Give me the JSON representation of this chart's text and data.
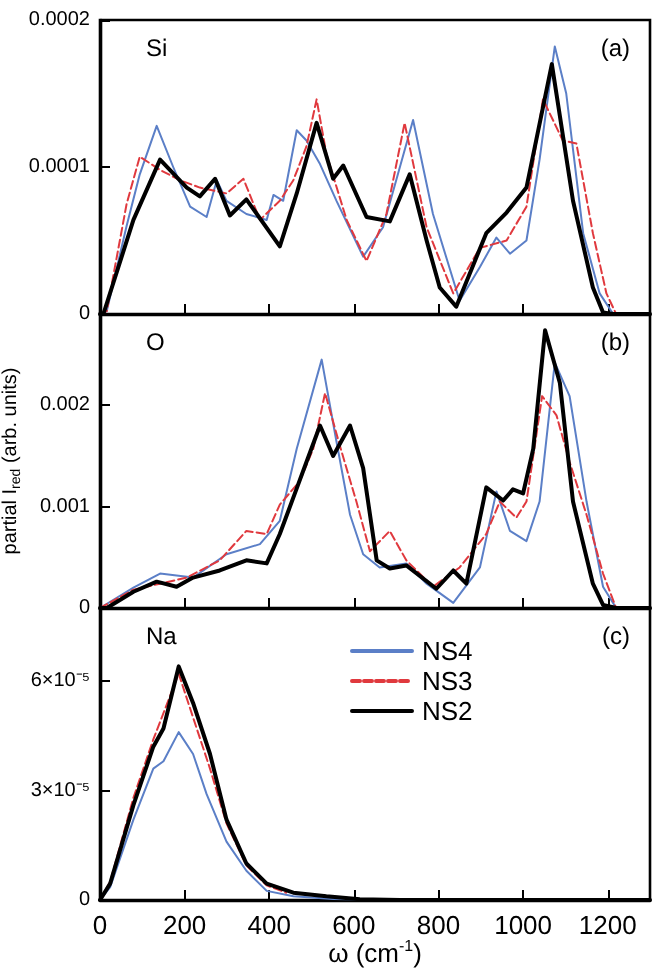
{
  "chart_data": [
    {
      "type": "line",
      "annotations": [
        "Si",
        "(a)"
      ],
      "xlim": [
        0,
        1300
      ],
      "xticks": [
        0,
        200,
        400,
        600,
        800,
        1000,
        1200
      ],
      "ylim": [
        0,
        0.0002
      ],
      "yticks": [
        0,
        0.0001,
        0.0002
      ],
      "tick_labels": "y",
      "marker": "none",
      "series": [
        {
          "color": "#5b7fc7",
          "line_style": "solid",
          "x": [
            0,
            16,
            63,
            94,
            134,
            173,
            213,
            252,
            276,
            299,
            346,
            394,
            410,
            433,
            465,
            488,
            520,
            559,
            622,
            669,
            740,
            787,
            850,
            898,
            937,
            969,
            1008,
            1039,
            1075,
            1102,
            1142,
            1181,
            1213,
            1300
          ],
          "values": [
            0,
            2e-06,
            6e-05,
            9.5e-05,
            0.000128,
            0.0001,
            7.3e-05,
            6.6e-05,
            9.1e-05,
            7.7e-05,
            6.8e-05,
            6.4e-05,
            8.1e-05,
            7.7e-05,
            0.000125,
            0.000118,
            0.000102,
            7.7e-05,
            3.9e-05,
            5.9e-05,
            0.000132,
            6.8e-05,
            9e-06,
            3.2e-05,
            5.2e-05,
            4.1e-05,
            5e-05,
            0.000105,
            0.000182,
            0.00015,
            5.5e-05,
            1.4e-05,
            0,
            0
          ]
        },
        {
          "color": "#e0393e",
          "line_style": "dashed",
          "x": [
            0,
            16,
            63,
            94,
            142,
            189,
            236,
            299,
            339,
            378,
            425,
            457,
            488,
            512,
            535,
            583,
            630,
            677,
            720,
            772,
            835,
            898,
            961,
            1008,
            1047,
            1094,
            1126,
            1165,
            1197,
            1220,
            1300
          ],
          "values": [
            0,
            2e-06,
            7.5e-05,
            0.000107,
            9.8e-05,
            9.1e-05,
            8.6e-05,
            8.2e-05,
            9.2e-05,
            6.4e-05,
            7.7e-05,
            9.1e-05,
            0.000114,
            0.000146,
            0.000109,
            6.4e-05,
            3.6e-05,
            6.8e-05,
            0.00013,
            5.9e-05,
            1.4e-05,
            4.5e-05,
            5e-05,
            7.3e-05,
            0.000146,
            0.000118,
            0.000116,
            5.5e-05,
            1.4e-05,
            0,
            0
          ]
        },
        {
          "color": "#000000",
          "line_style": "solid",
          "x": [
            0,
            8,
            79,
            142,
            205,
            236,
            272,
            307,
            346,
            425,
            465,
            512,
            551,
            575,
            630,
            685,
            732,
            772,
            803,
            842,
            913,
            961,
            1008,
            1068,
            1118,
            1165,
            1189,
            1213,
            1300
          ],
          "values": [
            0,
            0,
            6.4e-05,
            0.000105,
            8.6e-05,
            8e-05,
            9.2e-05,
            6.7e-05,
            7.8e-05,
            4.6e-05,
            8.2e-05,
            0.00013,
            9.2e-05,
            0.000101,
            6.6e-05,
            6.3e-05,
            9.5e-05,
            5e-05,
            1.8e-05,
            5e-06,
            5.5e-05,
            6.9e-05,
            8.6e-05,
            0.00017,
            7.7e-05,
            1.8e-05,
            1e-06,
            0,
            0
          ]
        }
      ]
    },
    {
      "type": "line",
      "ylabel": "partial I$_{red}$ (arb. units)",
      "annotations": [
        "O",
        "(b)"
      ],
      "xlim": [
        0,
        1300
      ],
      "xticks": [
        0,
        200,
        400,
        600,
        800,
        1000,
        1200
      ],
      "ylim": [
        0,
        0.0029
      ],
      "yticks": [
        0,
        0.001,
        0.002
      ],
      "tick_labels": "y",
      "marker": "none",
      "series": [
        {
          "color": "#5b7fc7",
          "line_style": "solid",
          "x": [
            0,
            79,
            142,
            220,
            299,
            378,
            425,
            465,
            524,
            559,
            591,
            622,
            661,
            724,
            772,
            835,
            898,
            937,
            969,
            1008,
            1039,
            1075,
            1110,
            1150,
            1189,
            1220,
            1300
          ],
          "values": [
            0,
            0.0002,
            0.00034,
            0.0003,
            0.00053,
            0.00063,
            0.00086,
            0.00157,
            0.00245,
            0.00164,
            0.00092,
            0.00053,
            0.0004,
            0.00044,
            0.00024,
            5e-05,
            0.0004,
            0.00115,
            0.00076,
            0.00066,
            0.00105,
            0.00242,
            0.00209,
            0.00105,
            0.00021,
            0,
            0
          ]
        },
        {
          "color": "#e0393e",
          "line_style": "dashed",
          "x": [
            0,
            79,
            142,
            205,
            283,
            346,
            394,
            425,
            472,
            504,
            532,
            567,
            606,
            638,
            685,
            724,
            787,
            850,
            913,
            945,
            984,
            1008,
            1045,
            1079,
            1110,
            1150,
            1189,
            1220,
            1300
          ],
          "values": [
            0,
            0.00018,
            0.00024,
            0.0003,
            0.00047,
            0.00076,
            0.00073,
            0.00102,
            0.00125,
            0.00157,
            0.00212,
            0.0016,
            0.00105,
            0.00056,
            0.00076,
            0.00047,
            0.00021,
            0.0004,
            0.00073,
            0.00105,
            0.00089,
            0.00105,
            0.00209,
            0.0019,
            0.00144,
            0.00092,
            0.00034,
            0,
            0
          ]
        },
        {
          "color": "#000000",
          "line_style": "solid",
          "x": [
            0,
            16,
            79,
            134,
            181,
            220,
            283,
            346,
            394,
            425,
            465,
            488,
            520,
            551,
            591,
            622,
            654,
            685,
            724,
            795,
            835,
            866,
            913,
            953,
            976,
            1000,
            1024,
            1052,
            1087,
            1118,
            1165,
            1189,
            1220,
            1300
          ],
          "values": [
            0,
            0,
            0.00016,
            0.00026,
            0.00021,
            0.0003,
            0.00037,
            0.00047,
            0.00044,
            0.00073,
            0.00118,
            0.00144,
            0.0018,
            0.0015,
            0.0018,
            0.00138,
            0.00047,
            0.00039,
            0.00042,
            0.00019,
            0.00037,
            0.00024,
            0.00119,
            0.00106,
            0.00117,
            0.00113,
            0.00157,
            0.00274,
            0.00222,
            0.00105,
            0.00024,
            3e-05,
            0,
            0
          ]
        }
      ]
    },
    {
      "type": "line",
      "xlabel": "ω (cm$^{-1}$)",
      "annotations": [
        "Na",
        "(c)"
      ],
      "xlim": [
        0,
        1300
      ],
      "xticks": [
        0,
        200,
        400,
        600,
        800,
        1000,
        1200
      ],
      "ylim": [
        0,
        8e-05
      ],
      "yticks": [
        0,
        {
          "value": 3e-05,
          "label": "3×10⁻⁵"
        },
        {
          "value": 6e-05,
          "label": "6×10⁻⁵"
        }
      ],
      "legend": "top",
      "marker": "none",
      "series": [
        {
          "name": "NS4",
          "color": "#5b7fc7",
          "line_style": "solid",
          "x": [
            0,
            24,
            79,
            126,
            150,
            186,
            220,
            252,
            299,
            346,
            394,
            457,
            551,
            700,
            1300
          ],
          "values": [
            0,
            3.5e-06,
            2.2e-05,
            3.6e-05,
            3.8e-05,
            4.6e-05,
            4e-05,
            2.9e-05,
            1.6e-05,
            8e-06,
            2.5e-06,
            1e-06,
            3e-07,
            0,
            0
          ]
        },
        {
          "name": "NS3",
          "color": "#e0393e",
          "line_style": "dashed",
          "x": [
            0,
            24,
            79,
            126,
            186,
            220,
            260,
            299,
            346,
            394,
            440
          ],
          "values": [
            0,
            5e-06,
            2.8e-05,
            4.4e-05,
            6.2e-05,
            5e-05,
            3.6e-05,
            2.1e-05,
            9.5e-06,
            4e-06,
            2e-06
          ]
        },
        {
          "name": "NS2",
          "color": "#000000",
          "line_style": "solid",
          "x": [
            0,
            24,
            79,
            126,
            150,
            186,
            220,
            260,
            299,
            346,
            394,
            457,
            535,
            614,
            709,
            1300
          ],
          "values": [
            0,
            4.5e-06,
            2.6e-05,
            4.2e-05,
            4.7e-05,
            6.4e-05,
            5.4e-05,
            4e-05,
            2.2e-05,
            1e-05,
            4.5e-06,
            2e-06,
            1e-06,
            2e-07,
            0,
            0
          ]
        }
      ]
    }
  ]
}
